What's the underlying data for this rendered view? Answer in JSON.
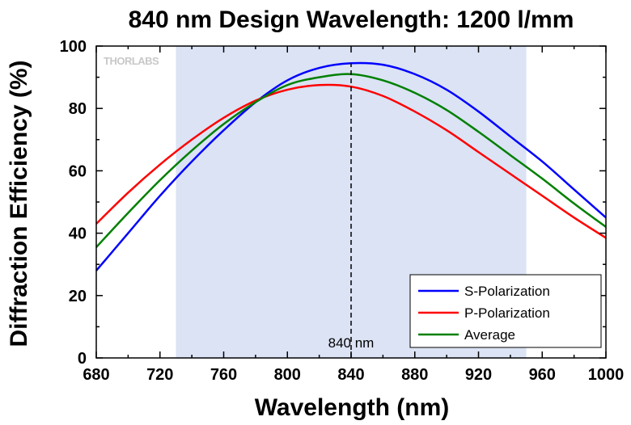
{
  "chart_data": {
    "type": "line",
    "title": "840 nm Design Wavelength: 1200 l/mm",
    "xlabel": "Wavelength (nm)",
    "ylabel": "Diffraction Efficiency (%)",
    "xlim": [
      680,
      1000
    ],
    "ylim": [
      0,
      100
    ],
    "xticks": [
      "680",
      "720",
      "760",
      "800",
      "840",
      "880",
      "920",
      "960",
      "1000"
    ],
    "yticks": [
      "0",
      "20",
      "40",
      "60",
      "80",
      "100"
    ],
    "grid": false,
    "legend_position": "bottom-right",
    "shaded_region": {
      "x_start": 730,
      "x_end": 950,
      "color": "#dbe3f5"
    },
    "design_line": {
      "x": 840,
      "label": "840 nm"
    },
    "logo_text": "THORLABS",
    "x": [
      680,
      700,
      720,
      740,
      760,
      780,
      800,
      820,
      840,
      860,
      880,
      900,
      920,
      940,
      960,
      980,
      1000
    ],
    "series": [
      {
        "name": "S-Polarization",
        "color": "#0000ff",
        "values": [
          28,
          40,
          52,
          63,
          73,
          82,
          89,
          93,
          94.5,
          94,
          91,
          86,
          79,
          71,
          63,
          54,
          45
        ]
      },
      {
        "name": "P-Polarization",
        "color": "#ff0000",
        "values": [
          43,
          53,
          62,
          70,
          77,
          82.5,
          86,
          87.5,
          87,
          84,
          79,
          73,
          66,
          59,
          52,
          45,
          38.5
        ]
      },
      {
        "name": "Average",
        "color": "#008000",
        "values": [
          35.5,
          46.5,
          57,
          66.5,
          75,
          82,
          87.5,
          90,
          91,
          89,
          85,
          79.5,
          72.5,
          65,
          57.5,
          49.5,
          42
        ]
      }
    ]
  }
}
